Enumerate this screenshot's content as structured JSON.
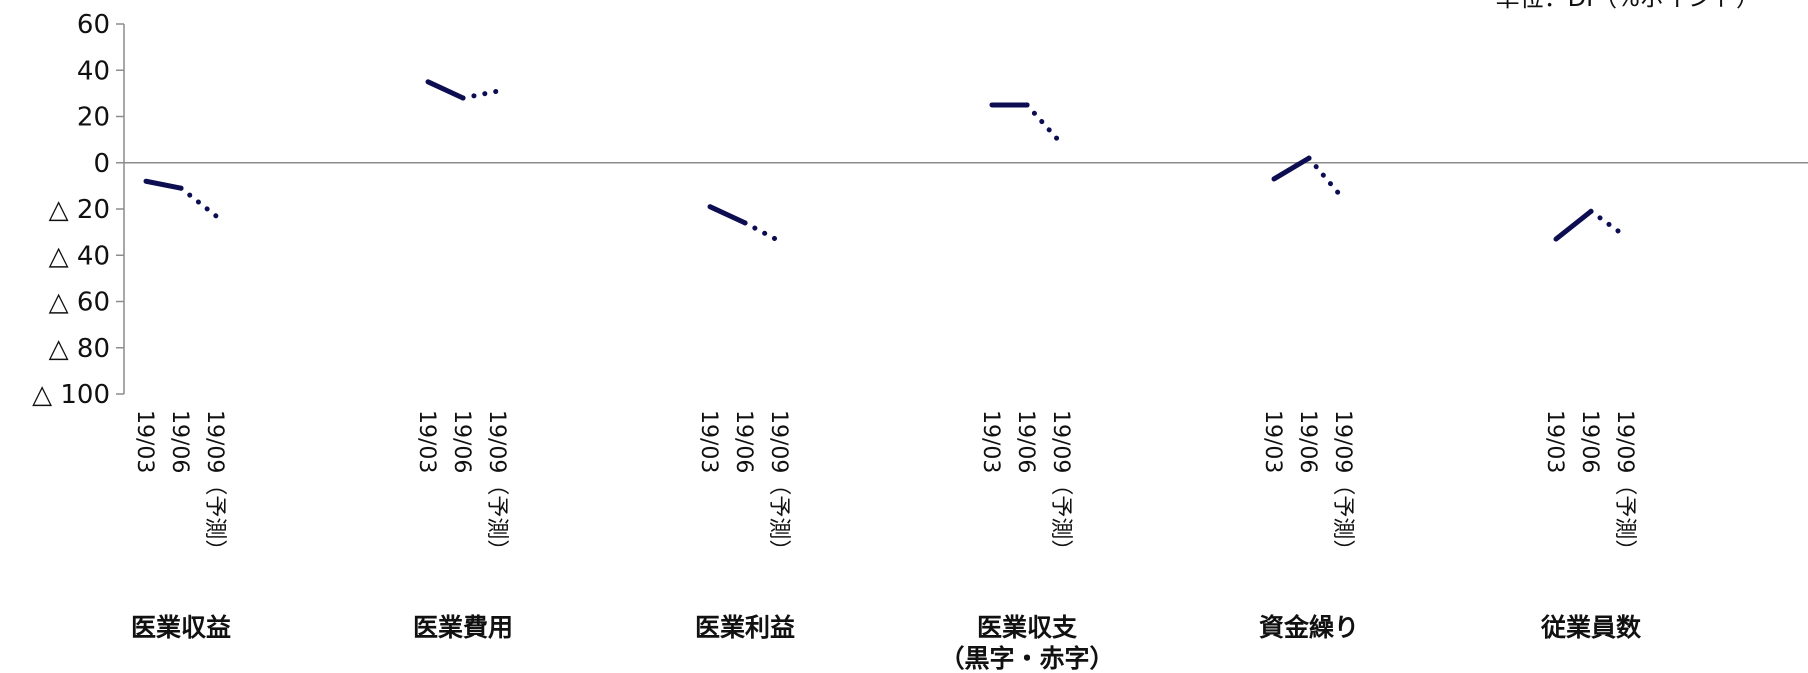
{
  "chart_data": {
    "type": "line",
    "unit_label": "単位：DI（%ポイント）",
    "ylim": [
      -100,
      60
    ],
    "yticks": [
      60,
      40,
      20,
      0,
      -20,
      -40,
      -60,
      -80,
      -100
    ],
    "ytick_labels": [
      "60",
      "40",
      "20",
      "0",
      "△ 20",
      "△ 40",
      "△ 60",
      "△ 80",
      "△ 100"
    ],
    "period_labels": [
      "19/03",
      "19/06",
      "19/09（予測）"
    ],
    "groups": [
      {
        "label": "医業収益",
        "values": [
          -8,
          -11,
          -23
        ]
      },
      {
        "label": "医業費用",
        "values": [
          35,
          28,
          31
        ]
      },
      {
        "label": "医業利益",
        "values": [
          -19,
          -26,
          -34
        ]
      },
      {
        "label": "医業収支（黒字・赤字）",
        "values": [
          25,
          25,
          8
        ]
      },
      {
        "label": "資金繰り",
        "values": [
          -7,
          2,
          -16
        ]
      },
      {
        "label": "従業員数",
        "values": [
          -33,
          -21,
          -32
        ]
      }
    ],
    "colors": {
      "line": "#0d0d52",
      "axis": "#8c8c8c"
    },
    "grid": false,
    "forecast_style": "dotted"
  }
}
